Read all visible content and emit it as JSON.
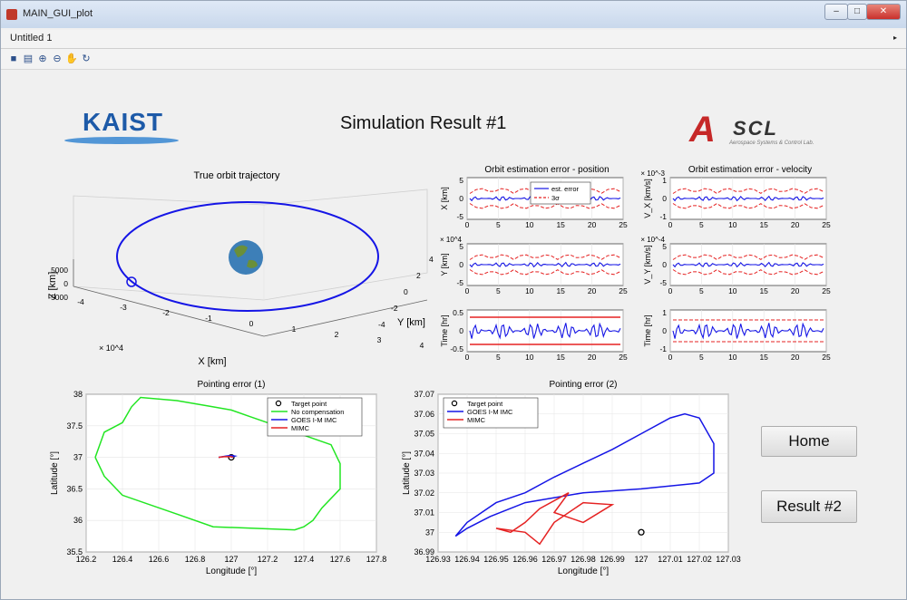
{
  "window": {
    "title": "MAIN_GUI_plot",
    "buttons": [
      "–",
      "□",
      "✕"
    ]
  },
  "menubar": {
    "title": "Untitled 1",
    "arrow": "▸"
  },
  "toolbar": {
    "icons": [
      "save-icon",
      "print-icon",
      "zoom-in-icon",
      "zoom-out-icon",
      "pan-icon",
      "rotate-icon"
    ]
  },
  "header": {
    "title": "Simulation Result #1",
    "logo_left": "KAIST",
    "logo_right_a": "A",
    "logo_right_scl": "SCL",
    "logo_right_sub": "Aerospace Systems & Control Lab."
  },
  "buttons": {
    "home": "Home",
    "result2": "Result #2"
  },
  "colors": {
    "blue": "#1515e6",
    "red": "#e52222",
    "green": "#22e622",
    "black": "#000000"
  },
  "chart_data": [
    {
      "type": "line",
      "title": "True orbit trajectory",
      "xlabel": "X [km]",
      "ylabel": "Y [km]",
      "zlabel": "Z [km]",
      "x_ticks": [
        "-4",
        "-3",
        "-2",
        "-1",
        "0",
        "1",
        "2",
        "3",
        "4"
      ],
      "y_ticks": [
        "4",
        "2",
        "0",
        "-2",
        "-4"
      ],
      "z_ticks": [
        "5000",
        "0",
        "-5000"
      ],
      "x_exponent": "× 10^4",
      "series": [
        {
          "values": "circular equatorial orbit, radius ≈ 4.2 × 10^4 km"
        }
      ]
    },
    {
      "type": "line",
      "title": "Orbit estimation error - position",
      "panels": [
        {
          "ylabel": "X [km]",
          "yticks": [
            "5",
            "0",
            "-5"
          ],
          "xticks": [
            "0",
            "5",
            "10",
            "15",
            "20",
            "25"
          ]
        },
        {
          "ylabel": "Y [km]",
          "yticks": [
            "5",
            "0",
            "-5"
          ],
          "xticks": [
            "0",
            "5",
            "10",
            "15",
            "20",
            "25"
          ],
          "exponent": "× 10^4"
        },
        {
          "ylabel": "Time [hr]",
          "yticks": [
            "0.5",
            "0",
            "-0.5"
          ],
          "xticks": [
            "0",
            "5",
            "10",
            "15",
            "20",
            "25"
          ]
        }
      ],
      "legend": [
        "est. error",
        "3σ"
      ],
      "series": [
        {
          "name": "est. error",
          "values": [
            0,
            0.4,
            -0.3,
            0.5,
            -0.2,
            0.3,
            -0.4,
            0.2,
            0,
            0.3,
            -0.3,
            0.2,
            -0.2,
            0.4,
            -0.1,
            0
          ]
        },
        {
          "name": "3σ",
          "values": [
            3,
            4,
            2,
            4.5,
            2.5,
            4,
            2,
            4.5,
            3,
            4,
            2,
            4.5,
            3,
            4,
            2.5,
            3
          ]
        }
      ]
    },
    {
      "type": "line",
      "title": "Orbit estimation error - velocity",
      "panels": [
        {
          "ylabel": "V_X [km/s]",
          "yticks": [
            "1",
            "0",
            "-1"
          ],
          "xticks": [
            "0",
            "5",
            "10",
            "15",
            "20",
            "25"
          ],
          "exponent": "× 10^-3"
        },
        {
          "ylabel": "V_Y [km/s]",
          "yticks": [
            "5",
            "0",
            "-5"
          ],
          "xticks": [
            "0",
            "5",
            "10",
            "15",
            "20",
            "25"
          ],
          "exponent": "× 10^-4"
        },
        {
          "ylabel": "Time [hr]",
          "yticks": [
            "1",
            "0",
            "-1"
          ],
          "xticks": [
            "0",
            "5",
            "10",
            "15",
            "20",
            "25"
          ]
        }
      ]
    },
    {
      "type": "line",
      "title": "Pointing error (1)",
      "xlabel": "Longitude [°]",
      "ylabel": "Latitude [°]",
      "xlim": [
        126.2,
        127.8
      ],
      "ylim": [
        35.5,
        38
      ],
      "xticks": [
        "126.2",
        "126.4",
        "126.6",
        "126.8",
        "127",
        "127.2",
        "127.4",
        "127.6",
        "127.8"
      ],
      "yticks": [
        "38",
        "37.5",
        "37",
        "36.5",
        "36",
        "35.5"
      ],
      "legend": [
        "Target point",
        "No compensation",
        "GOES I-M IMC",
        "MIMC"
      ],
      "series": [
        {
          "name": "Target point",
          "x": [
            127.0
          ],
          "y": [
            37.0
          ]
        },
        {
          "name": "No compensation",
          "x": [
            126.25,
            126.3,
            126.4,
            126.45,
            126.5,
            126.7,
            126.9,
            127.0,
            127.1,
            127.3,
            127.45,
            127.55,
            127.6,
            127.6,
            127.5,
            127.45,
            127.4,
            127.35,
            126.9,
            126.7,
            126.4,
            126.3,
            126.25
          ],
          "y": [
            37.0,
            37.4,
            37.55,
            37.8,
            37.95,
            37.9,
            37.8,
            37.75,
            37.65,
            37.45,
            37.3,
            37.2,
            36.9,
            36.5,
            36.2,
            36.0,
            35.9,
            35.85,
            35.9,
            36.1,
            36.4,
            36.7,
            37.0
          ]
        },
        {
          "name": "GOES I-M IMC",
          "x": [
            126.93,
            126.97,
            127.0,
            127.02,
            127.0
          ],
          "y": [
            37.0,
            37.02,
            37.03,
            37.02,
            37.0
          ]
        },
        {
          "name": "MIMC",
          "x": [
            126.93,
            126.96,
            127.0,
            127.01
          ],
          "y": [
            37.0,
            37.01,
            37.01,
            37.0
          ]
        }
      ]
    },
    {
      "type": "line",
      "title": "Pointing error (2)",
      "xlabel": "Longitude [°]",
      "ylabel": "Latitude [°]",
      "xlim": [
        126.93,
        127.03
      ],
      "ylim": [
        36.99,
        37.07
      ],
      "xticks": [
        "126.93",
        "126.94",
        "126.95",
        "126.96",
        "126.97",
        "126.98",
        "126.99",
        "127",
        "127.01",
        "127.02",
        "127.03"
      ],
      "yticks": [
        "37.07",
        "37.06",
        "37.05",
        "37.04",
        "37.03",
        "37.02",
        "37.01",
        "37",
        "36.99"
      ],
      "legend": [
        "Target point",
        "GOES I-M IMC",
        "MIMC"
      ],
      "series": [
        {
          "name": "Target point",
          "x": [
            127.0
          ],
          "y": [
            37.0
          ]
        },
        {
          "name": "GOES I-M IMC",
          "x": [
            126.936,
            126.94,
            126.945,
            126.95,
            126.96,
            126.97,
            126.98,
            126.99,
            127.0,
            127.01,
            127.015,
            127.02,
            127.025,
            127.025,
            127.02,
            127.0,
            126.98,
            126.96,
            126.948,
            126.94,
            126.936
          ],
          "y": [
            36.998,
            37.005,
            37.01,
            37.015,
            37.02,
            37.028,
            37.035,
            37.042,
            37.05,
            37.058,
            37.06,
            37.058,
            37.045,
            37.03,
            37.025,
            37.022,
            37.02,
            37.015,
            37.008,
            37.002,
            36.998
          ]
        },
        {
          "name": "MIMC",
          "x": [
            126.95,
            126.96,
            126.965,
            126.97,
            126.98,
            126.99,
            126.98,
            126.97,
            126.975,
            126.965,
            126.96,
            126.955,
            126.95
          ],
          "y": [
            37.002,
            37.0,
            36.994,
            37.005,
            37.015,
            37.014,
            37.005,
            37.01,
            37.02,
            37.012,
            37.005,
            37.0,
            37.002
          ]
        }
      ]
    }
  ]
}
